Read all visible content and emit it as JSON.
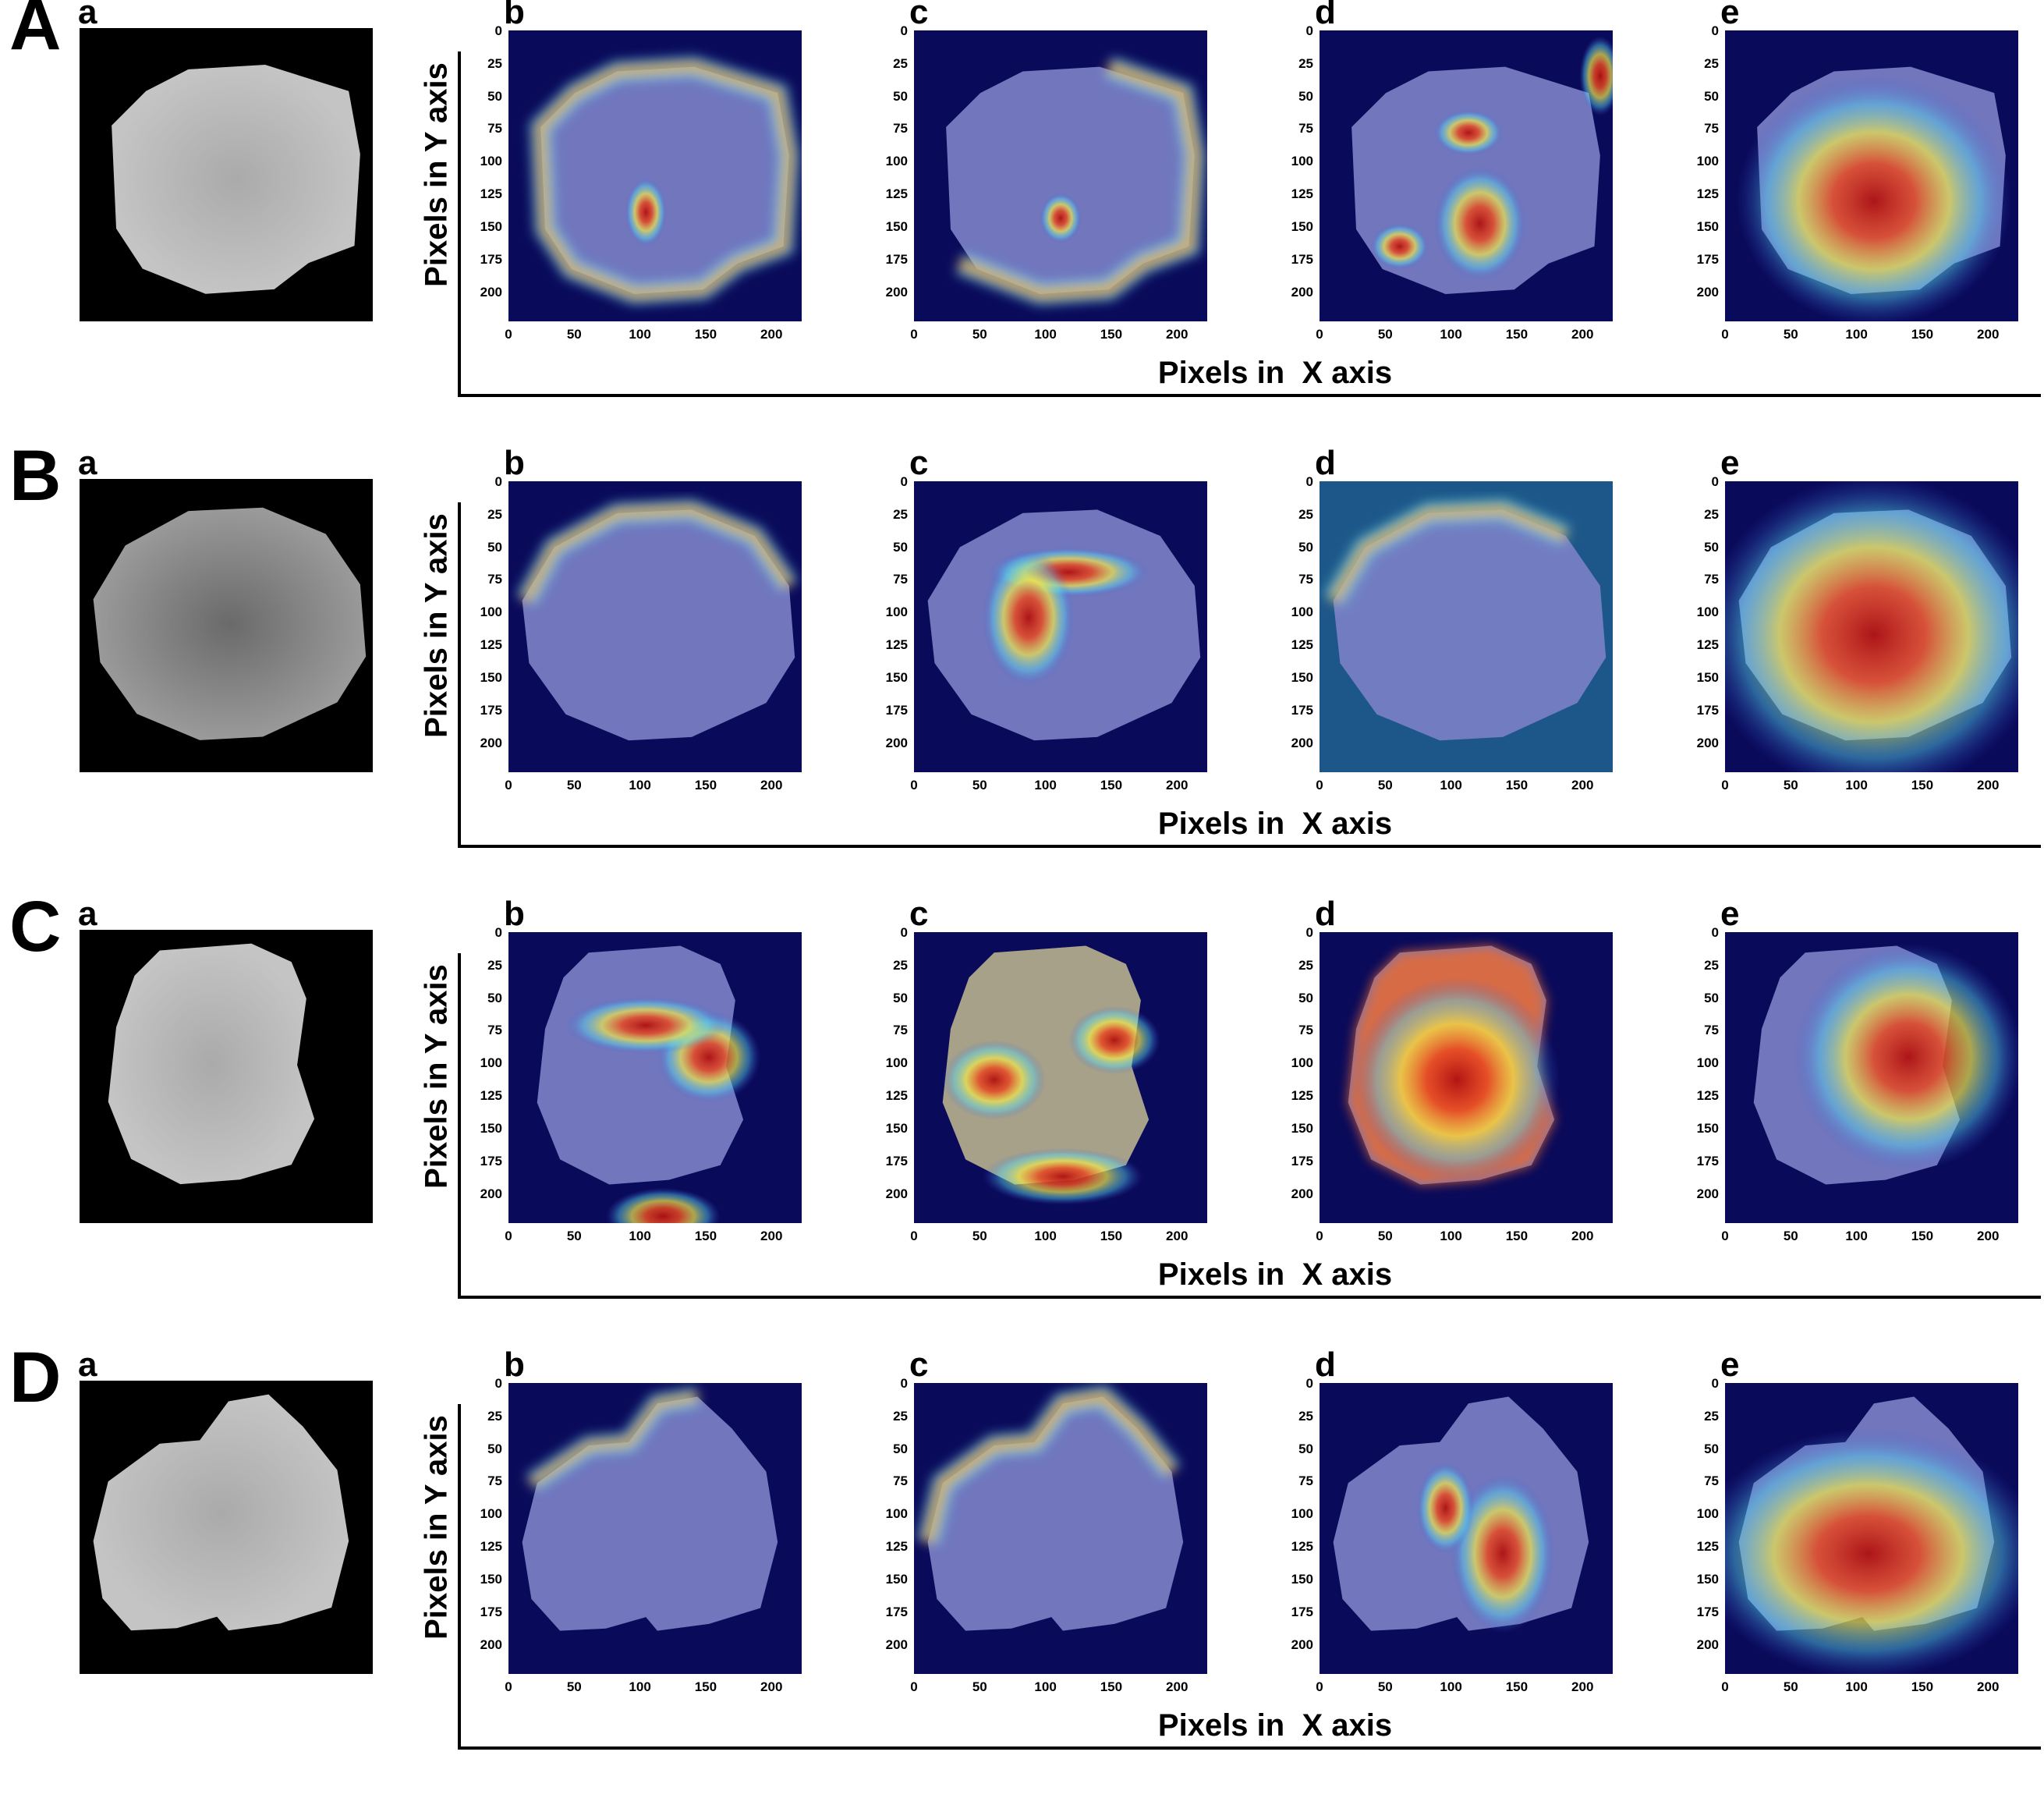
{
  "x_axis_label": "Pixels in  X axis",
  "y_axis_label": "Pixels in  Y axis",
  "tick_labels": [
    "0",
    "25",
    "50",
    "75",
    "100",
    "125",
    "150",
    "175",
    "200"
  ],
  "x_tick_labels": [
    "0",
    "50",
    "100",
    "150",
    "200"
  ],
  "panel_letters": [
    "a",
    "b",
    "c",
    "d",
    "e"
  ],
  "rows": [
    {
      "letter": "A"
    },
    {
      "letter": "B"
    },
    {
      "letter": "C"
    },
    {
      "letter": "D"
    }
  ],
  "colors": {
    "background_blue": "#0a0a5a",
    "heat_red": "#d42a1c",
    "heat_yellow": "#f2e94a",
    "heat_cyan": "#55d8f0",
    "nucleus_tint": "#7c82c8"
  }
}
